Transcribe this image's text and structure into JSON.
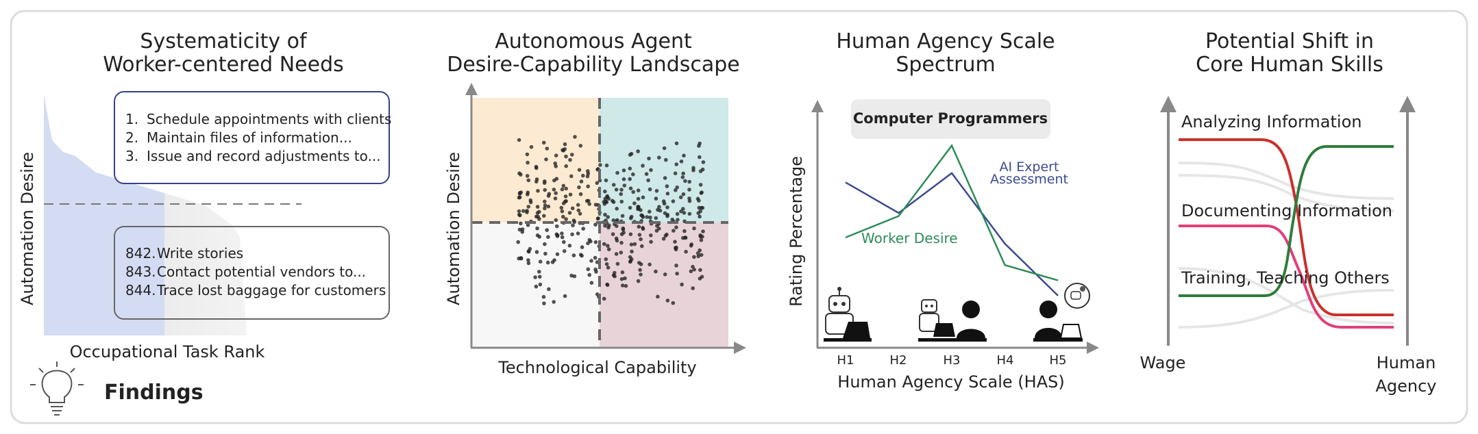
{
  "findings": {
    "label": "Findings",
    "icon": "lightbulb-icon"
  },
  "panel1": {
    "title_line1": "Systematicity of",
    "title_line2": "Worker-centered Needs",
    "ylabel": "Automation Desire",
    "xlabel": "Occupational Task Rank",
    "top_tasks": [
      {
        "rank": "1.",
        "text": "Schedule appointments with clients"
      },
      {
        "rank": "2.",
        "text": "Maintain files of information..."
      },
      {
        "rank": "3.",
        "text": "Issue and record adjustments to..."
      }
    ],
    "bottom_tasks": [
      {
        "rank": "842.",
        "text": "Write stories"
      },
      {
        "rank": "843.",
        "text": "Contact potential vendors to..."
      },
      {
        "rank": "844.",
        "text": "Trace lost baggage for customers"
      }
    ]
  },
  "panel2": {
    "title_line1": "Autonomous Agent",
    "title_line2": "Desire-Capability Landscape",
    "ylabel": "Automation Desire",
    "xlabel": "Technological Capability"
  },
  "panel3": {
    "title_line1": "Human Agency Scale",
    "title_line2": "Spectrum",
    "occupation": "Computer Programmers",
    "ylabel": "Rating Percentage",
    "xlabel": "Human Agency Scale (HAS)",
    "ticks": [
      "H1",
      "H2",
      "H3",
      "H4",
      "H5"
    ],
    "expert_label_line1": "AI Expert",
    "expert_label_line2": "Assessment",
    "worker_label": "Worker Desire"
  },
  "panel4": {
    "title_line1": "Potential Shift in",
    "title_line2": "Core Human Skills",
    "skills": [
      "Analyzing Information",
      "Documenting Information",
      "Training, Teaching Others"
    ],
    "left_axis": "Wage",
    "right_axis_line1": "Human",
    "right_axis_line2": "Agency"
  },
  "colors": {
    "blue_area": "#d3dcf2",
    "orange_quadrant": "#fcebd2",
    "teal_quadrant": "#cfe8e8",
    "pink_quadrant": "#e8d3d8",
    "expert_line": "#3b4a93",
    "worker_line": "#2e8b57",
    "red_line": "#c9302c",
    "green_line": "#2e7d3a",
    "pink_line": "#e0407a"
  },
  "chart_data": {
    "type": "line",
    "title": "Human Agency Scale Spectrum",
    "xlabel": "Human Agency Scale (HAS)",
    "ylabel": "Rating Percentage",
    "categories": [
      "H1",
      "H2",
      "H3",
      "H4",
      "H5"
    ],
    "series": [
      {
        "name": "AI Expert Assessment",
        "values": [
          54,
          44,
          57,
          34,
          17
        ]
      },
      {
        "name": "Worker Desire",
        "values": [
          36,
          43,
          66,
          27,
          22
        ]
      }
    ],
    "ylim": [
      0,
      80
    ]
  }
}
